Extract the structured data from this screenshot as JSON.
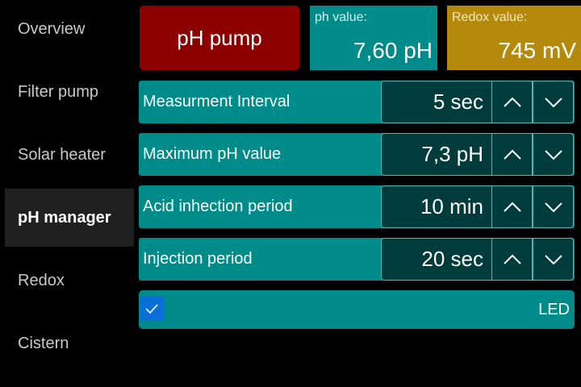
{
  "sidebar": {
    "items": [
      {
        "label": "Overview"
      },
      {
        "label": "Filter pump"
      },
      {
        "label": "Solar heater"
      },
      {
        "label": "pH manager",
        "active": true
      },
      {
        "label": "Redox"
      },
      {
        "label": "Cistern"
      }
    ]
  },
  "header": {
    "pump_button": "pH pump",
    "ph": {
      "label": "ph value:",
      "value": "7,60 pH"
    },
    "redox": {
      "label": "Redox value:",
      "value": "745 mV"
    }
  },
  "settings": [
    {
      "label": "Measurment Interval",
      "value": "5 sec"
    },
    {
      "label": "Maximum pH value",
      "value": "7,3 pH"
    },
    {
      "label": "Acid inhection period",
      "value": "10 min"
    },
    {
      "label": "Injection period",
      "value": "20 sec"
    }
  ],
  "led": {
    "label": "LED",
    "checked": true
  },
  "icons": {
    "up": "chevron-up-icon",
    "down": "chevron-down-icon",
    "check": "check-icon"
  },
  "colors": {
    "teal": "#008b8b",
    "dark_teal": "#003c3c",
    "pump_red": "#8c0000",
    "redox_gold": "#b58a0c",
    "checkbox_blue": "#0a6fd8",
    "active_nav": "#202020"
  }
}
